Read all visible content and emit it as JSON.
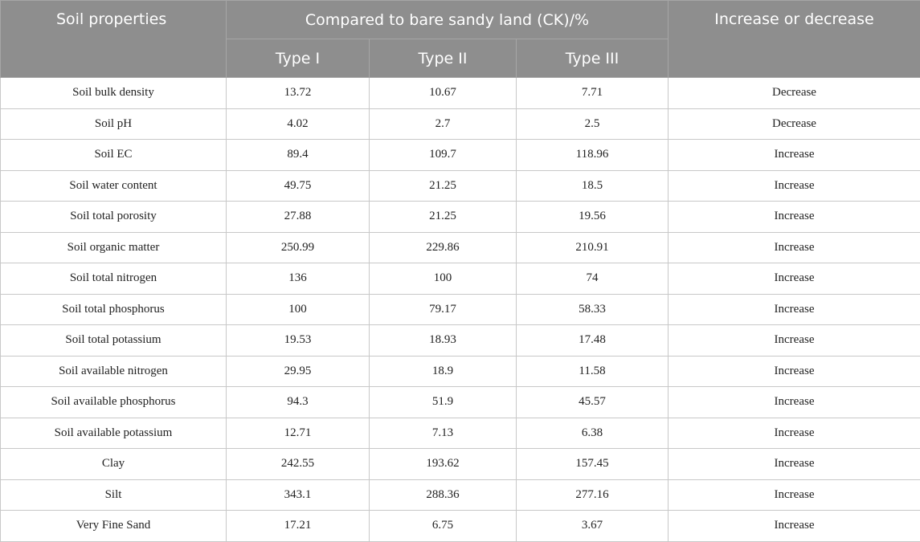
{
  "table": {
    "header": {
      "first": "Soil properties",
      "group": "Compared to bare sandy land (CK)/%",
      "last": "Increase or decrease",
      "sub": [
        "Type I",
        "Type II",
        "Type III"
      ]
    },
    "rows": [
      [
        "Soil bulk density",
        13.72,
        10.67,
        7.71,
        "Decrease"
      ],
      [
        "Soil pH",
        4.02,
        2.7,
        2.5,
        "Decrease"
      ],
      [
        "Soil EC",
        89.4,
        109.7,
        118.96,
        "Increase"
      ],
      [
        "Soil water content",
        49.75,
        21.25,
        18.5,
        "Increase"
      ],
      [
        "Soil total porosity",
        27.88,
        21.25,
        19.56,
        "Increase"
      ],
      [
        "Soil organic matter",
        250.99,
        229.86,
        210.91,
        "Increase"
      ],
      [
        "Soil total nitrogen",
        136,
        100,
        74,
        "Increase"
      ],
      [
        "Soil total phosphorus",
        100,
        79.17,
        58.33,
        "Increase"
      ],
      [
        "Soil total potassium",
        19.53,
        18.93,
        17.48,
        "Increase"
      ],
      [
        "Soil available nitrogen",
        29.95,
        18.9,
        11.58,
        "Increase"
      ],
      [
        "Soil available phosphorus",
        94.3,
        51.9,
        45.57,
        "Increase"
      ],
      [
        "Soil available potassium",
        12.71,
        7.13,
        6.38,
        "Increase"
      ],
      [
        "Clay",
        242.55,
        193.62,
        157.45,
        "Increase"
      ],
      [
        "Silt",
        343.1,
        288.36,
        277.16,
        "Increase"
      ],
      [
        "Very Fine Sand",
        17.21,
        6.75,
        3.67,
        "Increase"
      ]
    ]
  }
}
